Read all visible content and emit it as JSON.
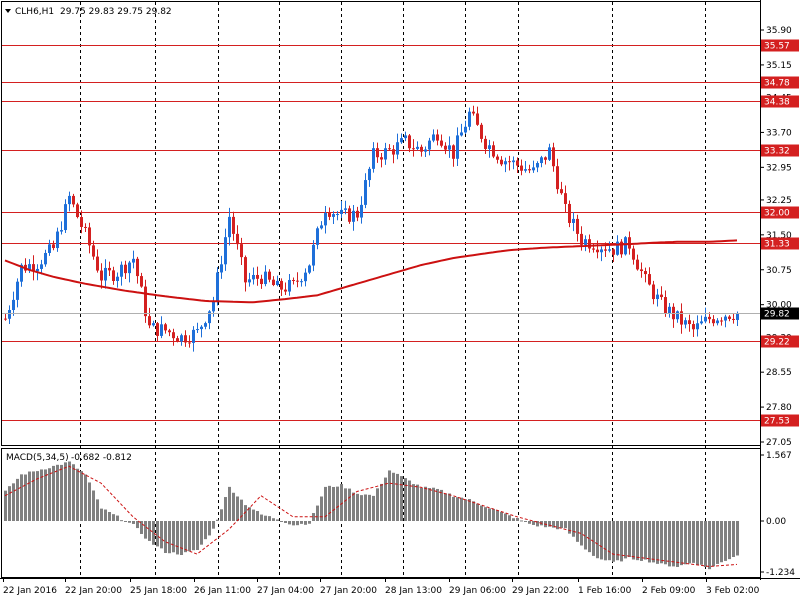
{
  "header": {
    "symbol": "CLH6,H1",
    "ohlc": "29.75 29.83 29.75 29.82"
  },
  "indicator": {
    "name": "MACD(5,34,5)",
    "values": "-0.682 -0.812"
  },
  "colors": {
    "bull": "#1E6FD9",
    "bear": "#D42020",
    "level_line": "#D42020",
    "ma_line": "#CC1111",
    "histogram": "#808080",
    "signal": "#CC1111",
    "current_price_bg": "#000000"
  },
  "chart_data": [
    {
      "type": "candlestick",
      "title": "CLH6,H1",
      "ylim": [
        27.05,
        36.0
      ],
      "y_ticks": [
        "35.90",
        "35.15",
        "34.45",
        "33.70",
        "32.95",
        "32.25",
        "31.50",
        "30.75",
        "30.00",
        "29.30",
        "28.55",
        "27.80",
        "27.05"
      ],
      "x_ticks": [
        "22 Jan 2016",
        "22 Jan 20:00",
        "25 Jan 18:00",
        "26 Jan 11:00",
        "27 Jan 04:00",
        "27 Jan 20:00",
        "28 Jan 13:00",
        "29 Jan 06:00",
        "29 Jan 22:00",
        "1 Feb 16:00",
        "2 Feb 09:00",
        "3 Feb 02:00"
      ],
      "levels": [
        {
          "value": 35.57,
          "label": "35.57"
        },
        {
          "value": 34.78,
          "label": "34.78"
        },
        {
          "value": 34.38,
          "label": "34.38"
        },
        {
          "value": 33.32,
          "label": "33.32"
        },
        {
          "value": 32.0,
          "label": "32.00"
        },
        {
          "value": 31.33,
          "label": "31.33"
        },
        {
          "value": 29.22,
          "label": "29.22"
        },
        {
          "value": 27.53,
          "label": "27.53"
        }
      ],
      "current_price": {
        "value": 29.82,
        "label": "29.82"
      },
      "moving_average": {
        "x": [
          0,
          6,
          12,
          20,
          30,
          40,
          50,
          62,
          70,
          78,
          86,
          96,
          104,
          112,
          120,
          126,
          134,
          142,
          150,
          156,
          162,
          168,
          176,
          183
        ],
        "y": [
          30.95,
          30.75,
          30.6,
          30.45,
          30.3,
          30.18,
          30.08,
          30.05,
          30.12,
          30.2,
          30.4,
          30.65,
          30.85,
          31.0,
          31.1,
          31.17,
          31.22,
          31.25,
          31.28,
          31.3,
          31.33,
          31.35,
          31.35,
          31.38
        ]
      },
      "anchors": {
        "x": [
          0,
          4,
          8,
          12,
          16,
          20,
          24,
          28,
          32,
          36,
          40,
          44,
          48,
          52,
          56,
          60,
          64,
          68,
          72,
          76,
          80,
          84,
          88,
          92,
          96,
          100,
          104,
          108,
          112,
          116,
          120,
          124,
          128,
          132,
          136,
          140,
          144,
          148,
          152,
          156,
          160,
          164,
          168,
          172,
          176,
          180,
          183
        ],
        "y": [
          29.7,
          30.8,
          30.9,
          31.2,
          32.3,
          31.5,
          30.6,
          30.7,
          31.0,
          29.5,
          29.45,
          29.3,
          29.4,
          30.1,
          31.9,
          30.5,
          30.6,
          30.35,
          30.4,
          30.9,
          32.1,
          31.9,
          31.95,
          33.2,
          33.3,
          33.5,
          33.3,
          33.7,
          33.25,
          34.1,
          33.5,
          33.15,
          33.0,
          32.85,
          33.3,
          32.0,
          31.4,
          31.3,
          31.2,
          31.3,
          30.5,
          30.0,
          29.7,
          29.45,
          29.7,
          29.8,
          29.82
        ]
      }
    },
    {
      "type": "bar",
      "title": "MACD(5,34,5)",
      "ylim": [
        -1.234,
        1.567
      ],
      "y_ticks": [
        "1.567",
        "0.00",
        "-1.234"
      ],
      "anchors": {
        "x": [
          0,
          4,
          8,
          12,
          16,
          20,
          24,
          28,
          32,
          36,
          40,
          44,
          48,
          52,
          56,
          60,
          64,
          68,
          72,
          76,
          80,
          84,
          88,
          92,
          96,
          100,
          104,
          108,
          112,
          116,
          120,
          124,
          128,
          132,
          136,
          140,
          144,
          148,
          152,
          156,
          160,
          164,
          168,
          172,
          176,
          180,
          183
        ],
        "y": [
          0.7,
          1.1,
          1.2,
          1.3,
          1.4,
          1.1,
          0.3,
          0.1,
          -0.1,
          -0.5,
          -0.75,
          -0.8,
          -0.7,
          -0.2,
          0.8,
          0.4,
          0.15,
          0.05,
          -0.1,
          -0.05,
          0.8,
          0.85,
          0.65,
          0.6,
          1.2,
          1.0,
          0.8,
          0.75,
          0.6,
          0.5,
          0.35,
          0.2,
          0.05,
          -0.1,
          -0.15,
          -0.2,
          -0.6,
          -0.9,
          -1.0,
          -0.9,
          -0.95,
          -1.05,
          -1.1,
          -1.0,
          -1.15,
          -0.95,
          -0.82
        ]
      },
      "signal_anchors": {
        "x": [
          0,
          8,
          16,
          24,
          32,
          40,
          48,
          56,
          64,
          72,
          80,
          88,
          96,
          104,
          112,
          120,
          128,
          136,
          144,
          152,
          160,
          168,
          176,
          183
        ],
        "y": [
          0.6,
          1.0,
          1.3,
          0.9,
          0.1,
          -0.5,
          -0.8,
          -0.2,
          0.6,
          0.1,
          0.1,
          0.7,
          0.9,
          0.8,
          0.6,
          0.35,
          0.1,
          -0.1,
          -0.3,
          -0.8,
          -0.9,
          -1.0,
          -1.1,
          -1.05
        ]
      }
    }
  ]
}
